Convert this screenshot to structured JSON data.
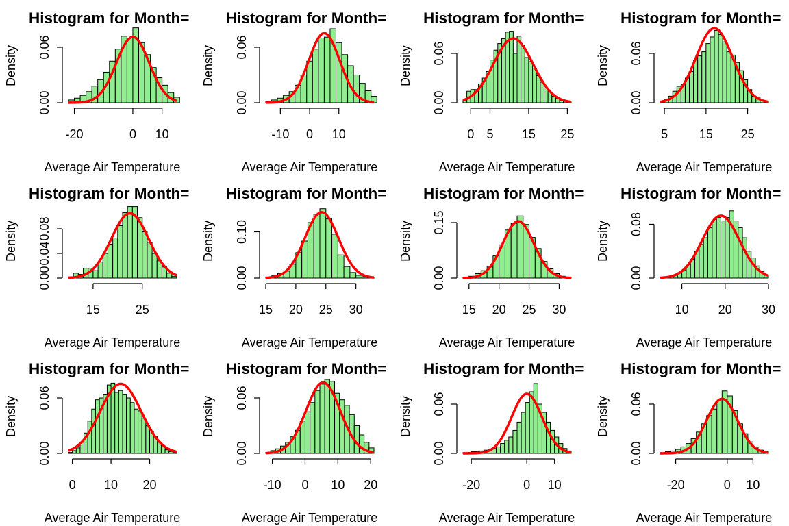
{
  "colors": {
    "bar_fill": "#90ee90",
    "bar_stroke": "#000000",
    "curve": "#ff0000",
    "axis": "#000000"
  },
  "chart_data": [
    {
      "type": "bar",
      "title": "Histogram for Month=",
      "xlabel": "Average Air Temperature",
      "ylabel": "Density",
      "xticks": [
        -20,
        0,
        10
      ],
      "yticks": [
        0.0,
        0.06
      ],
      "xlim": [
        -22,
        15
      ],
      "ylim": [
        0,
        0.08
      ],
      "bins": {
        "start": -22,
        "width": 2,
        "values": [
          0.003,
          0.005,
          0.008,
          0.012,
          0.018,
          0.025,
          0.033,
          0.045,
          0.058,
          0.072,
          0.07,
          0.081,
          0.065,
          0.052,
          0.038,
          0.027,
          0.019,
          0.011,
          0.006
        ]
      },
      "normal": {
        "mean": 0,
        "sd": 5.6
      }
    },
    {
      "type": "bar",
      "title": "Histogram for Month=",
      "xlabel": "Average Air Temperature",
      "ylabel": "Density",
      "xticks": [
        -10,
        0,
        10
      ],
      "yticks": [
        0.0,
        0.06
      ],
      "xlim": [
        -15,
        22
      ],
      "ylim": [
        0,
        0.08
      ],
      "bins": {
        "start": -15,
        "width": 2,
        "values": [
          0.001,
          0.003,
          0.005,
          0.008,
          0.012,
          0.019,
          0.03,
          0.045,
          0.058,
          0.07,
          0.071,
          0.08,
          0.065,
          0.052,
          0.04,
          0.03,
          0.021,
          0.013,
          0.007
        ]
      },
      "normal": {
        "mean": 5,
        "sd": 5.3
      }
    },
    {
      "type": "bar",
      "title": "Histogram for Month=",
      "xlabel": "Average Air Temperature",
      "ylabel": "Density",
      "xticks": [
        0,
        5,
        15,
        25
      ],
      "yticks": [
        0.0,
        0.06
      ],
      "xlim": [
        -2,
        26
      ],
      "ylim": [
        0,
        0.09
      ],
      "bins": {
        "start": -2,
        "width": 1,
        "values": [
          0.003,
          0.014,
          0.016,
          0.016,
          0.023,
          0.03,
          0.038,
          0.052,
          0.064,
          0.072,
          0.078,
          0.086,
          0.087,
          0.06,
          0.081,
          0.07,
          0.055,
          0.05,
          0.042,
          0.033,
          0.025,
          0.018,
          0.013,
          0.008,
          0.005,
          0.003,
          0.002,
          0.001
        ]
      },
      "normal": {
        "mean": 11,
        "sd": 5.1
      }
    },
    {
      "type": "bar",
      "title": "Histogram for Month=",
      "xlabel": "Average Air Temperature",
      "ylabel": "Density",
      "xticks": [
        5,
        15,
        25
      ],
      "yticks": [
        0.0,
        0.06
      ],
      "xlim": [
        4,
        30
      ],
      "ylim": [
        0,
        0.09
      ],
      "bins": {
        "start": 4,
        "width": 1,
        "values": [
          0.002,
          0.004,
          0.008,
          0.014,
          0.02,
          0.022,
          0.03,
          0.038,
          0.052,
          0.057,
          0.062,
          0.072,
          0.08,
          0.088,
          0.083,
          0.074,
          0.062,
          0.058,
          0.049,
          0.039,
          0.028,
          0.016,
          0.008,
          0.006,
          0.003,
          0.002
        ]
      },
      "normal": {
        "mean": 17,
        "sd": 4.4
      }
    },
    {
      "type": "bar",
      "title": "Histogram for Month=",
      "xlabel": "Average Air Temperature",
      "ylabel": "Density",
      "xticks": [
        15,
        25
      ],
      "yticks": [
        0.0,
        0.04,
        0.08
      ],
      "xlim": [
        10,
        32
      ],
      "ylim": [
        0,
        0.12
      ],
      "bins": {
        "start": 10,
        "width": 1,
        "values": [
          0.002,
          0.008,
          0.006,
          0.016,
          0.016,
          0.012,
          0.026,
          0.04,
          0.055,
          0.065,
          0.085,
          0.106,
          0.116,
          0.116,
          0.098,
          0.075,
          0.058,
          0.04,
          0.028,
          0.018,
          0.008,
          0.003
        ]
      },
      "normal": {
        "mean": 22.5,
        "sd": 3.8
      }
    },
    {
      "type": "bar",
      "title": "Histogram for Month=",
      "xlabel": "Average Air Temperature",
      "ylabel": "Density",
      "xticks": [
        15,
        20,
        25,
        30
      ],
      "yticks": [
        0.0,
        0.1
      ],
      "xlim": [
        15,
        33
      ],
      "ylim": [
        0,
        0.16
      ],
      "bins": {
        "start": 15,
        "width": 1,
        "values": [
          0.002,
          0.005,
          0.01,
          0.015,
          0.03,
          0.055,
          0.08,
          0.12,
          0.138,
          0.15,
          0.128,
          0.095,
          0.05,
          0.025,
          0.012,
          0.006,
          0.003,
          0.001
        ]
      },
      "normal": {
        "mean": 24.3,
        "sd": 2.8
      }
    },
    {
      "type": "bar",
      "title": "Histogram for Month=",
      "xlabel": "Average Air Temperature",
      "ylabel": "Density",
      "xticks": [
        15,
        20,
        25,
        30
      ],
      "yticks": [
        0.0,
        0.15
      ],
      "xlim": [
        14,
        32
      ],
      "ylim": [
        0,
        0.2
      ],
      "bins": {
        "start": 14,
        "width": 1,
        "values": [
          0.002,
          0.005,
          0.012,
          0.02,
          0.03,
          0.06,
          0.09,
          0.13,
          0.148,
          0.168,
          0.145,
          0.11,
          0.08,
          0.045,
          0.025,
          0.012,
          0.005,
          0.002
        ]
      },
      "normal": {
        "mean": 23.2,
        "sd": 2.6
      }
    },
    {
      "type": "bar",
      "title": "Histogram for Month=",
      "xlabel": "Average Air Temperature",
      "ylabel": "Density",
      "xticks": [
        10,
        20,
        30
      ],
      "yticks": [
        0.0,
        0.08
      ],
      "xlim": [
        5,
        30
      ],
      "ylim": [
        0,
        0.11
      ],
      "bins": {
        "start": 5,
        "width": 1,
        "values": [
          0.001,
          0.002,
          0.003,
          0.005,
          0.008,
          0.012,
          0.018,
          0.028,
          0.04,
          0.05,
          0.06,
          0.075,
          0.085,
          0.09,
          0.085,
          0.09,
          0.1,
          0.085,
          0.075,
          0.06,
          0.04,
          0.03,
          0.018,
          0.01,
          0.004
        ]
      },
      "normal": {
        "mean": 19,
        "sd": 4.3
      }
    },
    {
      "type": "bar",
      "title": "Histogram for Month=",
      "xlabel": "Average Air Temperature",
      "ylabel": "Density",
      "xticks": [
        0,
        10,
        20
      ],
      "yticks": [
        0.0,
        0.06
      ],
      "xlim": [
        -1,
        27
      ],
      "ylim": [
        0,
        0.08
      ],
      "bins": {
        "start": -1,
        "width": 1,
        "values": [
          0.001,
          0.003,
          0.006,
          0.012,
          0.022,
          0.035,
          0.048,
          0.058,
          0.06,
          0.064,
          0.074,
          0.076,
          0.066,
          0.068,
          0.064,
          0.06,
          0.055,
          0.048,
          0.046,
          0.038,
          0.03,
          0.024,
          0.018,
          0.012,
          0.007,
          0.004,
          0.002,
          0.001
        ]
      },
      "normal": {
        "mean": 12.5,
        "sd": 5.3
      }
    },
    {
      "type": "bar",
      "title": "Histogram for Month=",
      "xlabel": "Average Air Temperature",
      "ylabel": "Density",
      "xticks": [
        -10,
        0,
        10,
        20
      ],
      "yticks": [
        0.0,
        0.06
      ],
      "xlim": [
        -12,
        21
      ],
      "ylim": [
        0,
        0.08
      ],
      "bins": {
        "start": -12,
        "width": 1.5,
        "values": [
          0.001,
          0.003,
          0.005,
          0.008,
          0.012,
          0.018,
          0.025,
          0.035,
          0.045,
          0.055,
          0.068,
          0.075,
          0.08,
          0.078,
          0.065,
          0.058,
          0.052,
          0.042,
          0.03,
          0.02,
          0.012,
          0.006
        ]
      },
      "normal": {
        "mean": 5.5,
        "sd": 5.2
      }
    },
    {
      "type": "bar",
      "title": "Histogram for Month=",
      "xlabel": "Average Air Temperature",
      "ylabel": "Density",
      "xticks": [
        -20,
        0,
        10
      ],
      "yticks": [
        0.0,
        0.06
      ],
      "xlim": [
        -23,
        16
      ],
      "ylim": [
        0,
        0.09
      ],
      "bins": {
        "start": -23,
        "width": 1.5,
        "values": [
          0.001,
          0.001,
          0.002,
          0.002,
          0.003,
          0.004,
          0.005,
          0.006,
          0.008,
          0.012,
          0.016,
          0.02,
          0.028,
          0.038,
          0.05,
          0.062,
          0.075,
          0.085,
          0.06,
          0.05,
          0.038,
          0.028,
          0.02,
          0.012,
          0.006,
          0.003
        ]
      },
      "normal": {
        "mean": 0,
        "sd": 5.5
      }
    },
    {
      "type": "bar",
      "title": "Histogram for Month=",
      "xlabel": "Average Air Temperature",
      "ylabel": "Density",
      "xticks": [
        -20,
        0,
        10
      ],
      "yticks": [
        0.0,
        0.06
      ],
      "xlim": [
        -26,
        16
      ],
      "ylim": [
        0,
        0.09
      ],
      "bins": {
        "start": -26,
        "width": 2,
        "values": [
          0.001,
          0.002,
          0.003,
          0.005,
          0.008,
          0.012,
          0.018,
          0.026,
          0.036,
          0.046,
          0.054,
          0.064,
          0.076,
          0.07,
          0.052,
          0.036,
          0.024,
          0.014,
          0.008,
          0.004,
          0.002
        ]
      },
      "normal": {
        "mean": -2,
        "sd": 6.0
      }
    }
  ]
}
